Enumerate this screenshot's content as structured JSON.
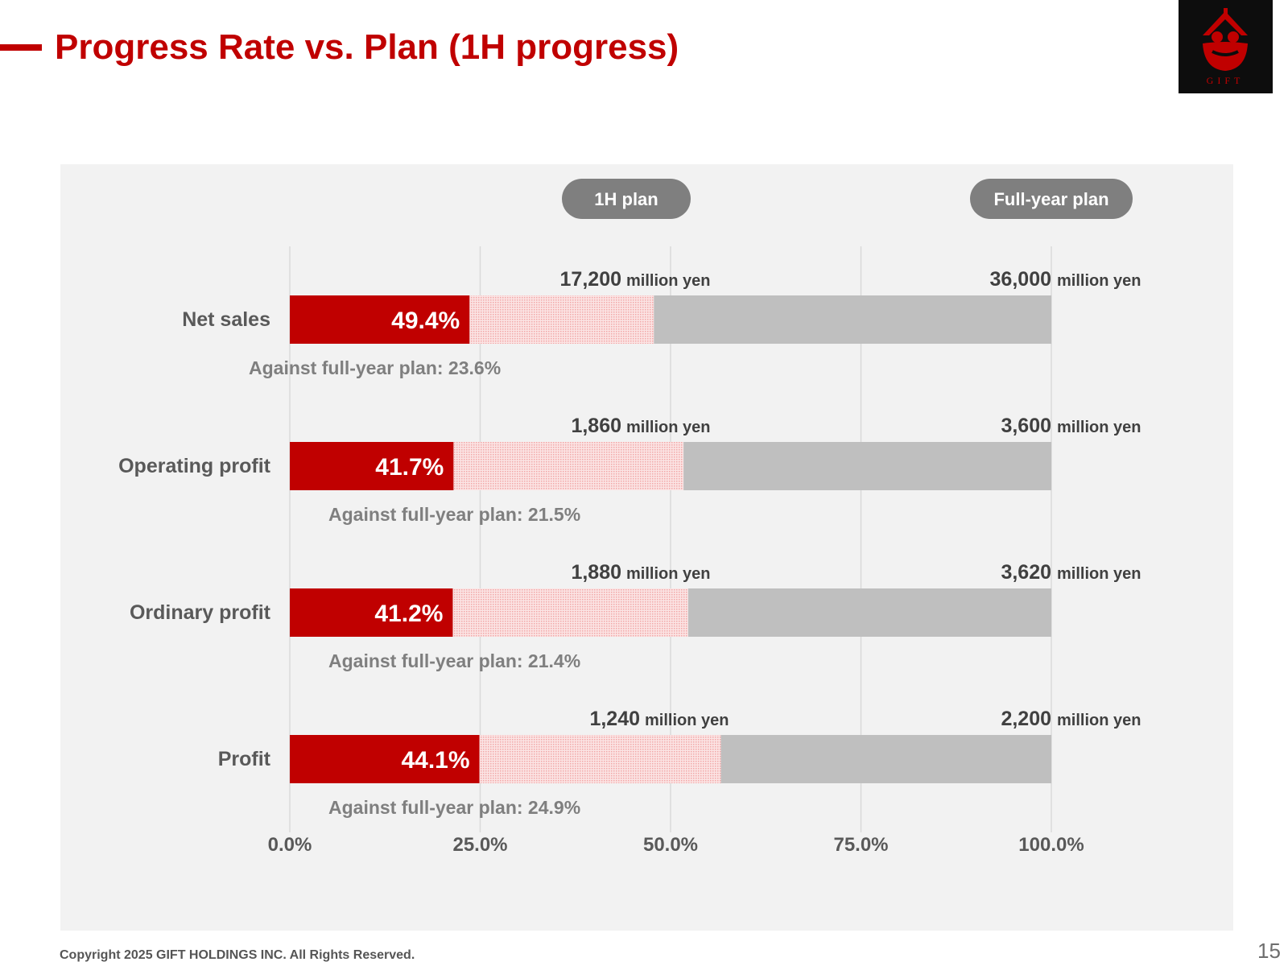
{
  "page": {
    "title": "Progress Rate vs. Plan (1H progress)",
    "copyright": "Copyright 2025 GIFT HOLDINGS INC. All Rights Reserved.",
    "page_number": "15",
    "accent_color": "#c00000",
    "logo": {
      "icon": "gift-house-bowl-logo",
      "text": "GIFT"
    }
  },
  "chart_data": {
    "type": "bar",
    "orientation": "horizontal",
    "stacked": true,
    "header_labels": [
      "1H plan",
      "Full-year plan"
    ],
    "categories": [
      "Net sales",
      "Operating profit",
      "Ordinary profit",
      "Profit"
    ],
    "series": [
      {
        "name": "",
        "role": "actual progress against full-year plan",
        "values": [
          23.6,
          21.5,
          21.4,
          24.9
        ],
        "color": "#c00000"
      },
      {
        "name": "",
        "role": "remaining to 1H plan",
        "values": [
          24.2,
          30.2,
          30.9,
          31.7
        ],
        "color": "#f7c9c9"
      },
      {
        "name": "",
        "role": "remaining to full-year plan",
        "values": [
          52.2,
          48.3,
          47.7,
          43.4
        ],
        "color": "#bfbfbf"
      }
    ],
    "progress_labels": [
      "49.4%",
      "41.7%",
      "41.2%",
      "44.1%"
    ],
    "full_year_notes": [
      "Against full-year plan: 23.6%",
      "Against full-year plan: 21.5%",
      "Against full-year plan: 21.4%",
      "Against full-year plan: 24.9%"
    ],
    "plan_1h": [
      "1,860",
      "1,880",
      "1,240"
    ],
    "plan_1h_all": [
      "17,200",
      "1,860",
      "1,880",
      "1,240"
    ],
    "plan_full_year": [
      "36,000",
      "3,600",
      "3,620",
      "2,200"
    ],
    "unit": "million yen",
    "x_ticks": [
      "0.0%",
      "25.0%",
      "50.0%",
      "75.0%",
      "100.0%"
    ],
    "x_tick_values": [
      0,
      25,
      50,
      75,
      100
    ],
    "xlim": [
      0,
      100
    ],
    "grid": true
  }
}
